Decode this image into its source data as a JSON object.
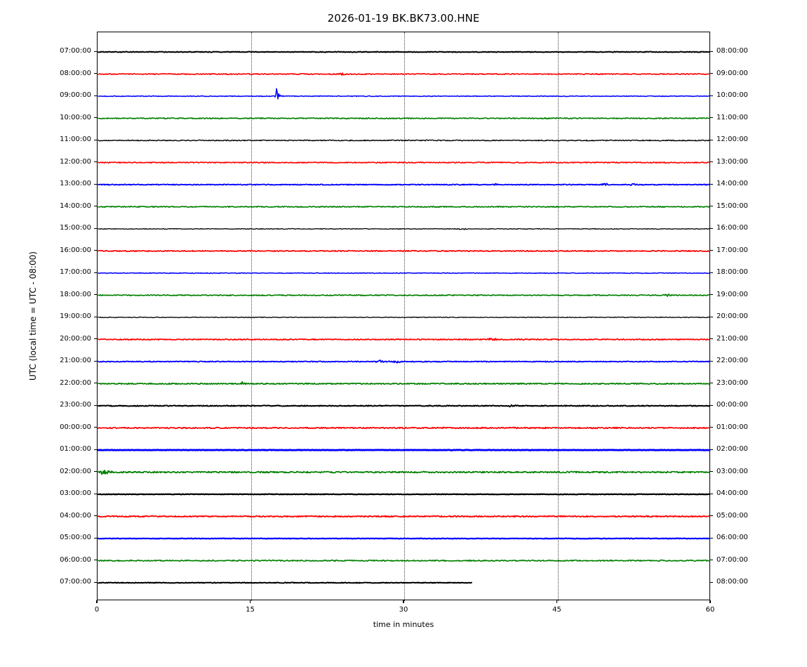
{
  "figure": {
    "title": "2026-01-19 BK.BK73.00.HNE"
  },
  "chart_data": {
    "type": "line",
    "subtype": "seismogram-dayplot",
    "title": "2026-01-19 BK.BK73.00.HNE",
    "xlabel": "time in minutes",
    "ylabel": "UTC (local time = UTC - 08:00)",
    "xlim": [
      0,
      60
    ],
    "x_ticks": [
      0,
      15,
      30,
      45,
      60
    ],
    "grid": "vertical dotted lines at 15, 30, 45",
    "legend": "none",
    "color_cycle": [
      "#000000",
      "#ff0000",
      "#0000ff",
      "#008000"
    ],
    "station": "BK.BK73.00.HNE",
    "date": "2026-01-19",
    "utc_offset_note": "local time = UTC - 08:00",
    "traces": [
      {
        "utc_left": "07:00:00",
        "utc_right": "08:00:00",
        "color": "#000000",
        "lw": 2.0,
        "noise": 0.5,
        "end_minute": 60,
        "events": []
      },
      {
        "utc_left": "08:00:00",
        "utc_right": "09:00:00",
        "color": "#ff0000",
        "lw": 1.6,
        "noise": 0.7,
        "end_minute": 60,
        "events": [
          [
            24,
            1.4,
            0.3
          ]
        ]
      },
      {
        "utc_left": "09:00:00",
        "utc_right": "10:00:00",
        "color": "#0000ff",
        "lw": 1.5,
        "noise": 0.5,
        "end_minute": 60,
        "events": [
          [
            17.5,
            9,
            0.1
          ],
          [
            17.7,
            3,
            0.25
          ]
        ]
      },
      {
        "utc_left": "10:00:00",
        "utc_right": "11:00:00",
        "color": "#008000",
        "lw": 1.6,
        "noise": 0.7,
        "end_minute": 60,
        "events": []
      },
      {
        "utc_left": "11:00:00",
        "utc_right": "12:00:00",
        "color": "#000000",
        "lw": 1.4,
        "noise": 0.7,
        "end_minute": 60,
        "events": []
      },
      {
        "utc_left": "12:00:00",
        "utc_right": "13:00:00",
        "color": "#ff0000",
        "lw": 1.6,
        "noise": 0.7,
        "end_minute": 60,
        "events": []
      },
      {
        "utc_left": "13:00:00",
        "utc_right": "14:00:00",
        "color": "#0000ff",
        "lw": 1.8,
        "noise": 0.6,
        "end_minute": 60,
        "events": [
          [
            39,
            1.0,
            0.3
          ],
          [
            49.7,
            1.5,
            0.3
          ],
          [
            52.4,
            1.2,
            0.3
          ]
        ]
      },
      {
        "utc_left": "14:00:00",
        "utc_right": "15:00:00",
        "color": "#008000",
        "lw": 1.6,
        "noise": 0.7,
        "end_minute": 60,
        "events": []
      },
      {
        "utc_left": "15:00:00",
        "utc_right": "16:00:00",
        "color": "#000000",
        "lw": 1.3,
        "noise": 0.5,
        "end_minute": 60,
        "events": [
          [
            35.7,
            1.2,
            0.3
          ]
        ]
      },
      {
        "utc_left": "16:00:00",
        "utc_right": "17:00:00",
        "color": "#ff0000",
        "lw": 1.7,
        "noise": 0.7,
        "end_minute": 60,
        "events": []
      },
      {
        "utc_left": "17:00:00",
        "utc_right": "18:00:00",
        "color": "#0000ff",
        "lw": 1.5,
        "noise": 0.5,
        "end_minute": 60,
        "events": []
      },
      {
        "utc_left": "18:00:00",
        "utc_right": "19:00:00",
        "color": "#008000",
        "lw": 1.6,
        "noise": 0.7,
        "end_minute": 60,
        "events": [
          [
            55.7,
            1.6,
            0.3
          ]
        ]
      },
      {
        "utc_left": "19:00:00",
        "utc_right": "20:00:00",
        "color": "#000000",
        "lw": 1.3,
        "noise": 0.5,
        "end_minute": 60,
        "events": [
          [
            42.8,
            1.2,
            0.2
          ]
        ]
      },
      {
        "utc_left": "20:00:00",
        "utc_right": "21:00:00",
        "color": "#ff0000",
        "lw": 1.7,
        "noise": 0.7,
        "end_minute": 60,
        "events": [
          [
            36.2,
            1.3,
            0.25
          ],
          [
            38.6,
            1.6,
            0.4
          ],
          [
            41.6,
            1.2,
            0.3
          ]
        ]
      },
      {
        "utc_left": "21:00:00",
        "utc_right": "22:00:00",
        "color": "#0000ff",
        "lw": 1.8,
        "noise": 0.6,
        "end_minute": 60,
        "events": [
          [
            27.6,
            1.8,
            0.3
          ],
          [
            29.3,
            1.5,
            0.3
          ]
        ]
      },
      {
        "utc_left": "22:00:00",
        "utc_right": "23:00:00",
        "color": "#008000",
        "lw": 1.7,
        "noise": 0.8,
        "end_minute": 60,
        "events": [
          [
            14.2,
            2.2,
            0.25
          ]
        ]
      },
      {
        "utc_left": "23:00:00",
        "utc_right": "00:00:00",
        "color": "#000000",
        "lw": 2.0,
        "noise": 0.6,
        "end_minute": 60,
        "events": [
          [
            40.5,
            0.8,
            0.5
          ]
        ]
      },
      {
        "utc_left": "00:00:00",
        "utc_right": "01:00:00",
        "color": "#ff0000",
        "lw": 1.7,
        "noise": 0.9,
        "end_minute": 60,
        "events": []
      },
      {
        "utc_left": "01:00:00",
        "utc_right": "02:00:00",
        "color": "#0000ff",
        "lw": 2.8,
        "noise": 0.3,
        "end_minute": 60,
        "events": []
      },
      {
        "utc_left": "02:00:00",
        "utc_right": "03:00:00",
        "color": "#008000",
        "lw": 1.7,
        "noise": 1.0,
        "end_minute": 60,
        "events": [
          [
            0.4,
            2.0,
            0.4
          ],
          [
            1.0,
            1.4,
            0.5
          ]
        ]
      },
      {
        "utc_left": "03:00:00",
        "utc_right": "04:00:00",
        "color": "#000000",
        "lw": 2.2,
        "noise": 0.4,
        "end_minute": 60,
        "events": []
      },
      {
        "utc_left": "04:00:00",
        "utc_right": "05:00:00",
        "color": "#ff0000",
        "lw": 1.8,
        "noise": 0.8,
        "end_minute": 60,
        "events": []
      },
      {
        "utc_left": "05:00:00",
        "utc_right": "06:00:00",
        "color": "#0000ff",
        "lw": 2.2,
        "noise": 0.4,
        "end_minute": 60,
        "events": []
      },
      {
        "utc_left": "06:00:00",
        "utc_right": "07:00:00",
        "color": "#008000",
        "lw": 1.6,
        "noise": 0.8,
        "end_minute": 60,
        "events": []
      },
      {
        "utc_left": "07:00:00",
        "utc_right": "08:00:00",
        "color": "#000000",
        "lw": 2.0,
        "noise": 0.5,
        "end_minute": 36.6,
        "events": []
      }
    ]
  },
  "layout_values": {
    "rows": 25,
    "x_tick_labels": [
      "0",
      "15",
      "30",
      "45",
      "60"
    ]
  }
}
